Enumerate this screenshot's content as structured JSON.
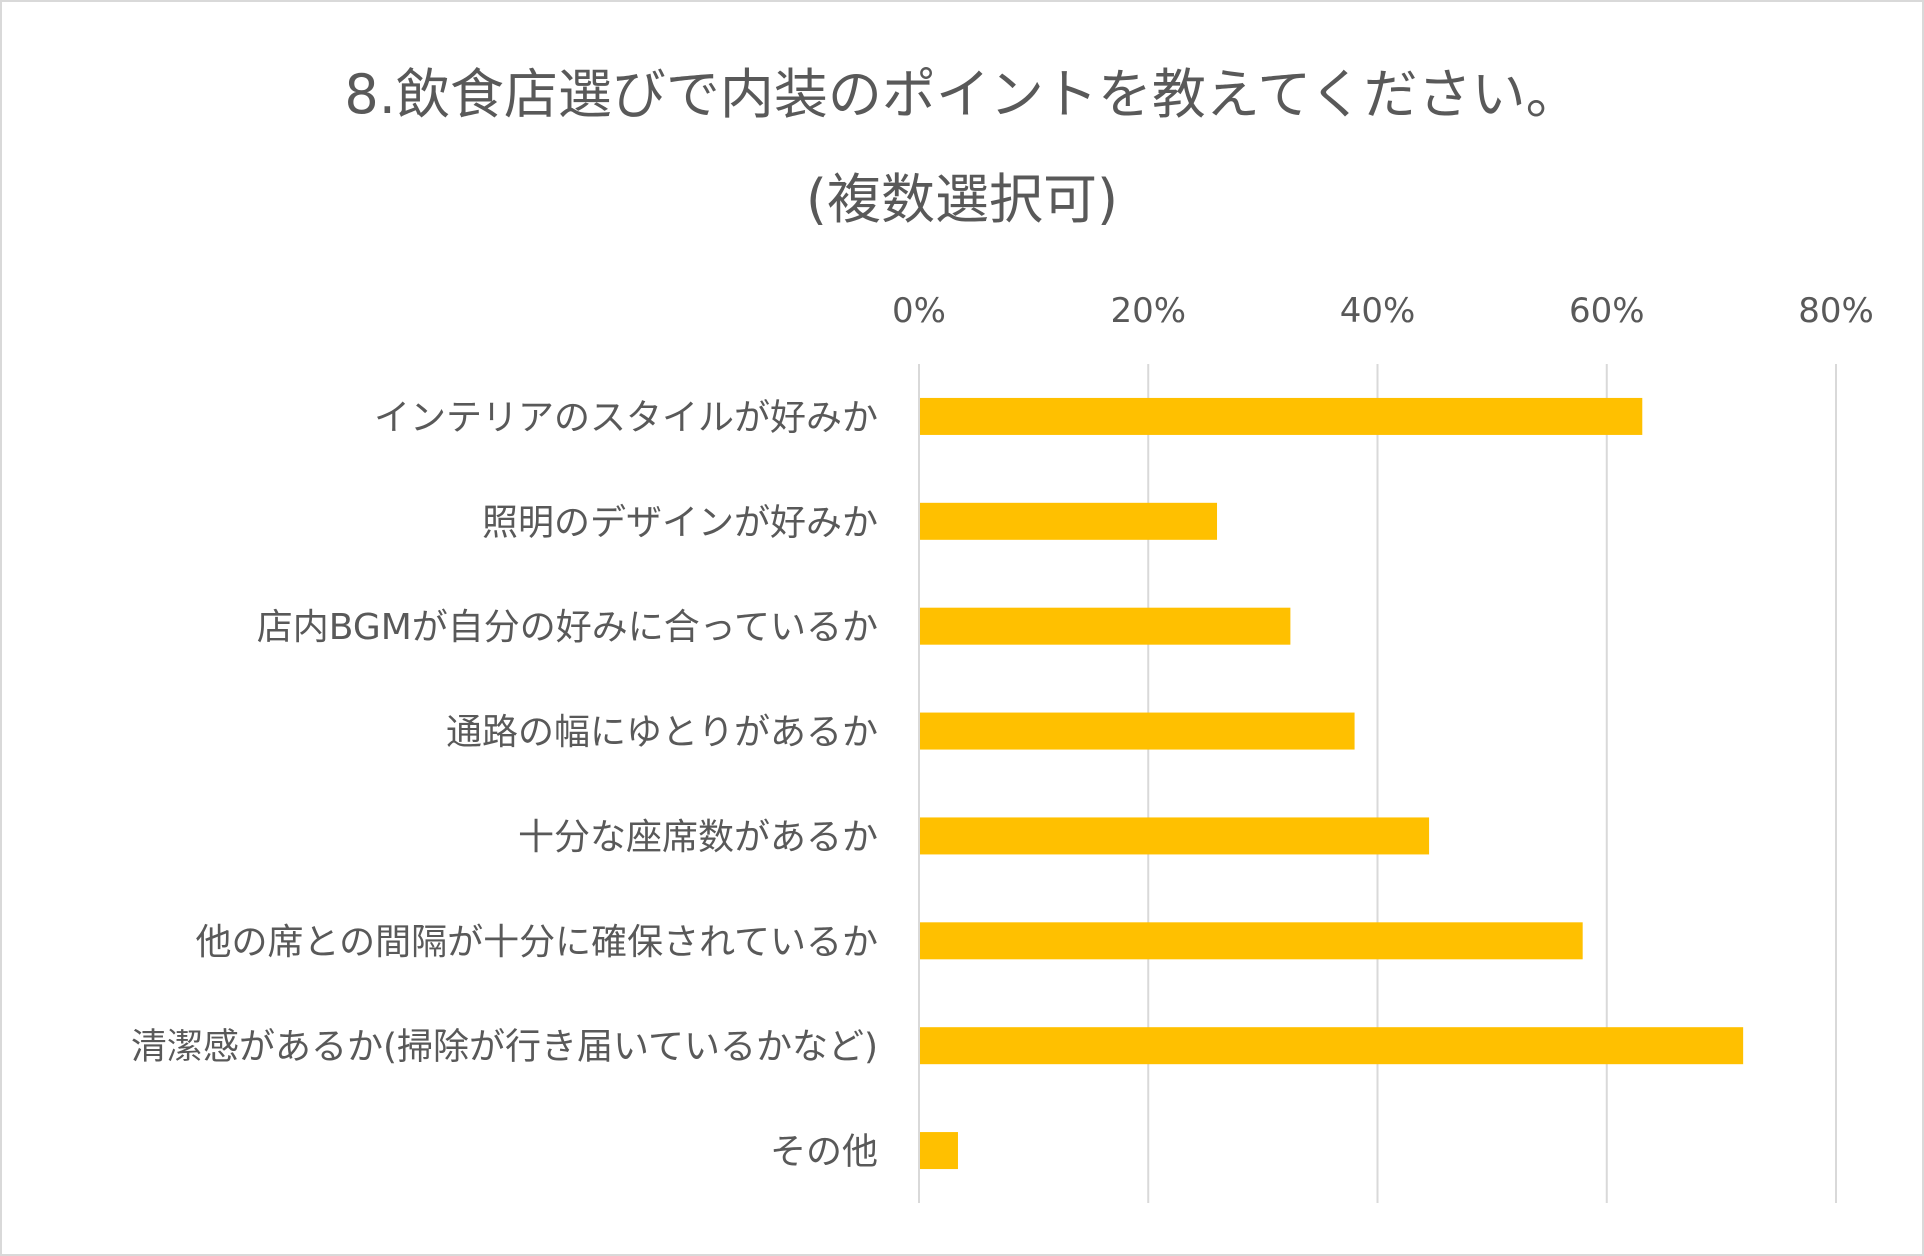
{
  "chart_data": {
    "type": "bar",
    "orientation": "horizontal",
    "title": "8.飲食店選びで内装のポイントを教えてください。",
    "subtitle": "(複数選択可)",
    "xlabel": "",
    "ylabel": "",
    "xlim": [
      0,
      80
    ],
    "x_ticks": [
      "0%",
      "20%",
      "40%",
      "60%",
      "80%"
    ],
    "x_tick_values": [
      0,
      20,
      40,
      60,
      80
    ],
    "x_axis_position": "top",
    "grid": true,
    "categories": [
      "インテリアのスタイルが好みか",
      "照明のデザインが好みか",
      "店内BGMが自分の好みに合っているか",
      "通路の幅にゆとりがあるか",
      "十分な座席数があるか",
      "他の席との間隔が十分に確保されているか",
      "清潔感があるか(掃除が行き届いているかなど)",
      "その他"
    ],
    "values": [
      63.1,
      26.0,
      32.4,
      38.0,
      44.5,
      57.9,
      71.9,
      3.4
    ],
    "unit": "%",
    "bar_color": "#FFC000",
    "grid_color": "#D9D9D9",
    "text_color": "#595959"
  }
}
